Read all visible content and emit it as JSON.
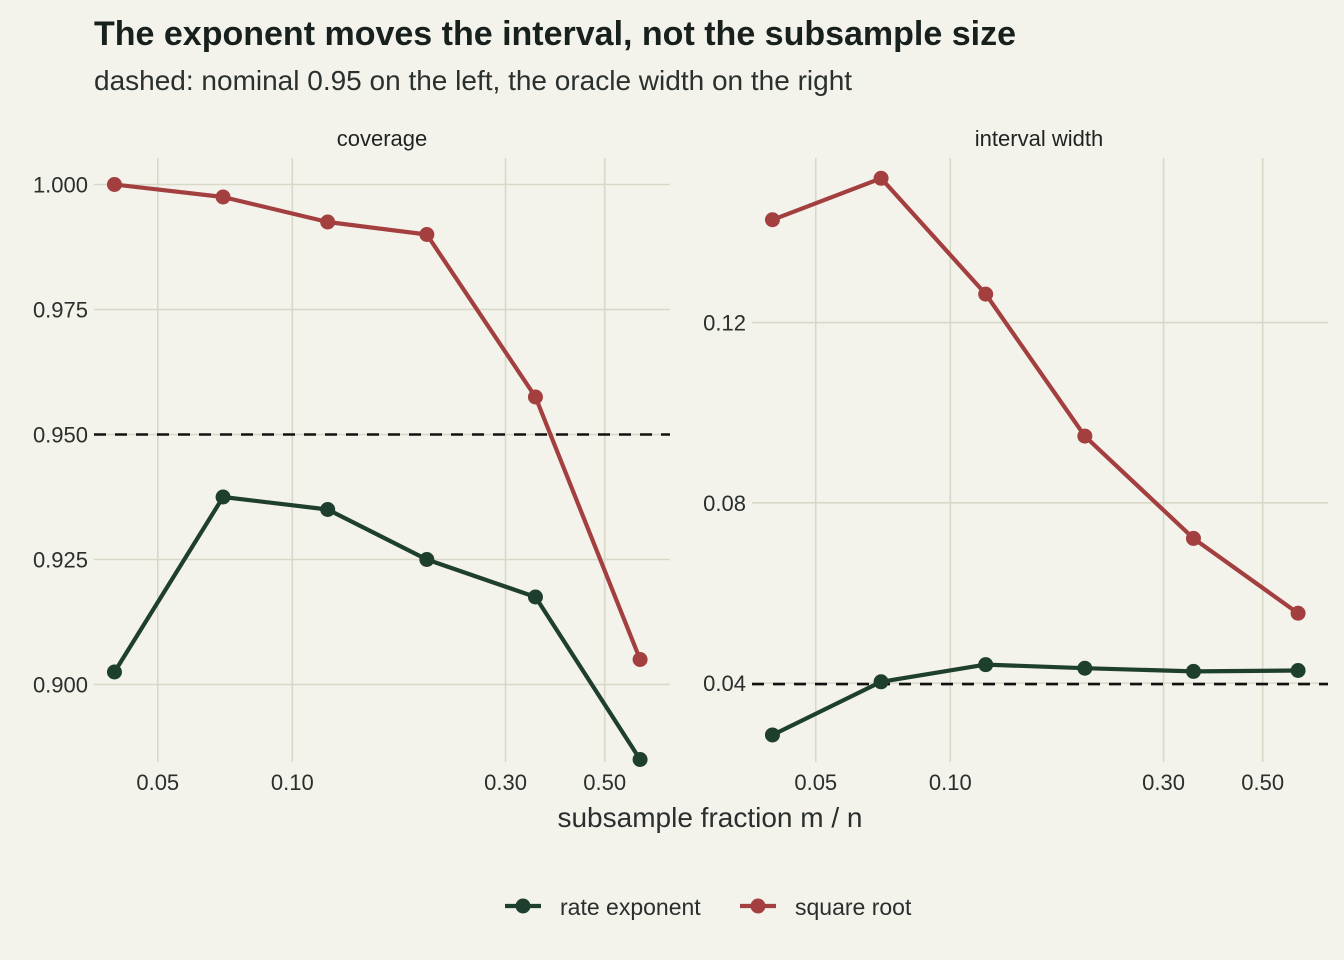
{
  "title": "The exponent moves the interval, not the subsample size",
  "subtitle": "dashed: nominal 0.95 on the left, the oracle width on the right",
  "xlabel": "subsample fraction m / n",
  "legend": {
    "placement": "bottom",
    "items": [
      {
        "label": "rate exponent",
        "color": "#1f3f2e"
      },
      {
        "label": "square root",
        "color": "#a33f3f"
      }
    ]
  },
  "chart_data": [
    {
      "type": "line",
      "panel_label": "coverage",
      "x_scale": "log",
      "x": [
        0.04,
        0.07,
        0.12,
        0.2,
        0.35,
        0.6
      ],
      "xticks": [
        "0.05",
        "0.10",
        "0.30",
        "0.50"
      ],
      "xtick_values": [
        0.05,
        0.1,
        0.3,
        0.5
      ],
      "xlim": [
        0.036,
        0.7
      ],
      "ylim": [
        0.8845,
        1.0053
      ],
      "yticks": [
        "0.900",
        "0.925",
        "0.950",
        "0.975",
        "1.000"
      ],
      "ytick_values": [
        0.9,
        0.925,
        0.95,
        0.975,
        1.0
      ],
      "reference_line": 0.95,
      "grid": true,
      "series": [
        {
          "name": "rate exponent",
          "color": "#1f3f2e",
          "values": [
            0.9025,
            0.9375,
            0.935,
            0.925,
            0.9175,
            0.885
          ]
        },
        {
          "name": "square root",
          "color": "#a33f3f",
          "values": [
            1.0,
            0.9975,
            0.9925,
            0.99,
            0.9575,
            0.905
          ]
        }
      ]
    },
    {
      "type": "line",
      "panel_label": "interval width",
      "x_scale": "log",
      "x": [
        0.04,
        0.07,
        0.12,
        0.2,
        0.35,
        0.6
      ],
      "xticks": [
        "0.05",
        "0.10",
        "0.30",
        "0.50"
      ],
      "xtick_values": [
        0.05,
        0.1,
        0.3,
        0.5
      ],
      "xlim": [
        0.036,
        0.7
      ],
      "ylim": [
        0.0225,
        0.1565
      ],
      "yticks": [
        "0.04",
        "0.08",
        "0.12"
      ],
      "ytick_values": [
        0.04,
        0.08,
        0.12
      ],
      "reference_line": 0.0398,
      "grid": true,
      "series": [
        {
          "name": "rate exponent",
          "color": "#1f3f2e",
          "values": [
            0.0285,
            0.0403,
            0.0441,
            0.0433,
            0.0426,
            0.0428
          ]
        },
        {
          "name": "square root",
          "color": "#a33f3f",
          "values": [
            0.1428,
            0.152,
            0.1263,
            0.0948,
            0.0721,
            0.0555
          ]
        }
      ]
    }
  ]
}
